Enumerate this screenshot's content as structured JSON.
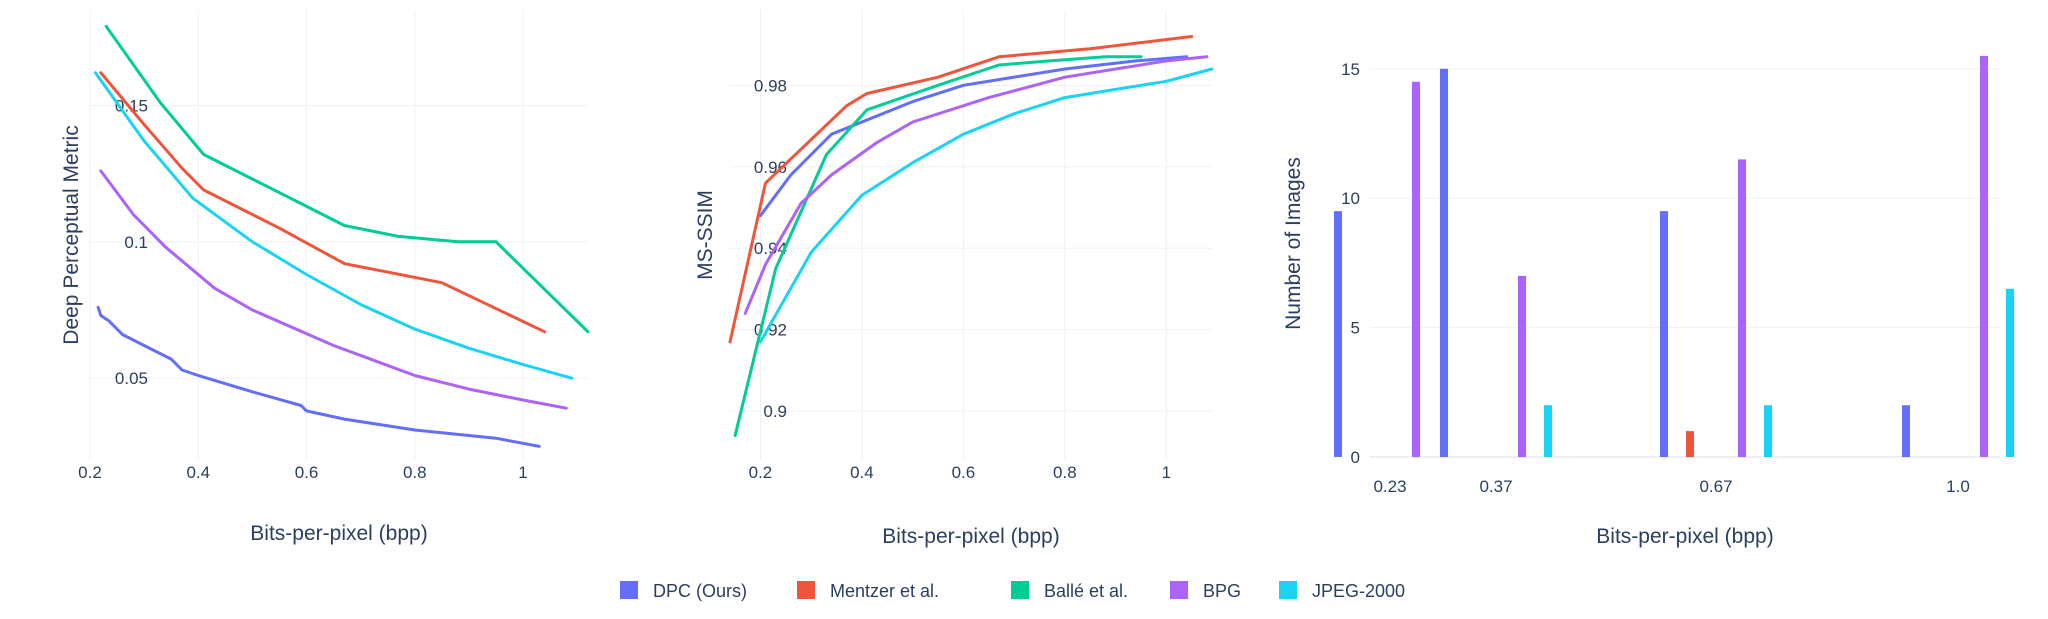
{
  "series_colors": {
    "DPC (Ours)": "#636efa",
    "Mentzer et al.": "#ef553b",
    "Ballé et al.": "#00cc96",
    "BPG": "#ab63fa",
    "JPEG-2000": "#19d3f3"
  },
  "legend": [
    "DPC (Ours)",
    "Mentzer et al.",
    "Ballé et al.",
    "BPG",
    "JPEG-2000"
  ],
  "chart_data": [
    {
      "type": "line",
      "title": "",
      "xlabel": "Bits-per-pixel (bpp)",
      "ylabel": "Deep Perceptual Metric",
      "xlim": [
        0.2,
        1.12
      ],
      "ylim": [
        0.02,
        0.185
      ],
      "xticks": [
        0.2,
        0.4,
        0.6,
        0.8,
        1
      ],
      "xtick_labels": [
        "0.2",
        "0.4",
        "0.6",
        "0.8",
        "1"
      ],
      "yticks": [
        0.05,
        0.1,
        0.15
      ],
      "ytick_labels": [
        "0.05",
        "0.1",
        "0.15"
      ],
      "series": [
        {
          "name": "DPC (Ours)",
          "x": [
            0.215,
            0.22,
            0.235,
            0.26,
            0.3,
            0.35,
            0.37,
            0.4,
            0.5,
            0.59,
            0.6,
            0.67,
            0.8,
            0.9,
            0.95,
            1.03
          ],
          "y": [
            0.076,
            0.073,
            0.071,
            0.066,
            0.062,
            0.057,
            0.053,
            0.051,
            0.045,
            0.04,
            0.038,
            0.035,
            0.031,
            0.029,
            0.028,
            0.025
          ]
        },
        {
          "name": "Mentzer et al.",
          "x": [
            0.22,
            0.3,
            0.37,
            0.41,
            0.55,
            0.67,
            0.85,
            1.04
          ],
          "y": [
            0.162,
            0.143,
            0.127,
            0.119,
            0.105,
            0.092,
            0.085,
            0.067
          ]
        },
        {
          "name": "Ballé et al.",
          "x": [
            0.23,
            0.33,
            0.41,
            0.55,
            0.67,
            0.77,
            0.88,
            0.95,
            1.12
          ],
          "y": [
            0.179,
            0.151,
            0.132,
            0.118,
            0.106,
            0.102,
            0.1,
            0.1,
            0.067
          ]
        },
        {
          "name": "BPG",
          "x": [
            0.22,
            0.28,
            0.34,
            0.43,
            0.5,
            0.65,
            0.8,
            0.9,
            1.0,
            1.08
          ],
          "y": [
            0.126,
            0.11,
            0.098,
            0.083,
            0.075,
            0.062,
            0.051,
            0.046,
            0.042,
            0.039
          ]
        },
        {
          "name": "JPEG-2000",
          "x": [
            0.21,
            0.3,
            0.39,
            0.5,
            0.6,
            0.7,
            0.8,
            0.9,
            1.0,
            1.09
          ],
          "y": [
            0.162,
            0.137,
            0.116,
            0.1,
            0.088,
            0.077,
            0.068,
            0.061,
            0.055,
            0.05
          ]
        }
      ]
    },
    {
      "type": "line",
      "title": "",
      "xlabel": "Bits-per-pixel (bpp)",
      "ylabel": "MS-SSIM",
      "xlim": [
        0.14,
        1.09
      ],
      "ylim": [
        0.888,
        0.9985
      ],
      "xticks": [
        0.2,
        0.4,
        0.6,
        0.8,
        1
      ],
      "xtick_labels": [
        "0.2",
        "0.4",
        "0.6",
        "0.8",
        "1"
      ],
      "yticks": [
        0.9,
        0.92,
        0.94,
        0.96,
        0.98
      ],
      "ytick_labels": [
        "0.9",
        "0.92",
        "0.94",
        "0.96",
        "0.98"
      ],
      "series": [
        {
          "name": "DPC (Ours)",
          "x": [
            0.2,
            0.26,
            0.34,
            0.5,
            0.6,
            0.8,
            0.94,
            1.04
          ],
          "y": [
            0.948,
            0.958,
            0.968,
            0.976,
            0.98,
            0.984,
            0.986,
            0.987
          ]
        },
        {
          "name": "Mentzer et al.",
          "x": [
            0.14,
            0.21,
            0.37,
            0.41,
            0.55,
            0.67,
            0.85,
            1.05
          ],
          "y": [
            0.917,
            0.956,
            0.975,
            0.978,
            0.982,
            0.987,
            0.989,
            0.992
          ]
        },
        {
          "name": "Ballé et al.",
          "x": [
            0.15,
            0.23,
            0.33,
            0.41,
            0.55,
            0.67,
            0.77,
            0.88,
            0.95
          ],
          "y": [
            0.894,
            0.935,
            0.963,
            0.974,
            0.98,
            0.985,
            0.986,
            0.987,
            0.987
          ]
        },
        {
          "name": "BPG",
          "x": [
            0.17,
            0.21,
            0.28,
            0.34,
            0.43,
            0.5,
            0.65,
            0.8,
            0.9,
            1.0,
            1.08
          ],
          "y": [
            0.924,
            0.936,
            0.951,
            0.958,
            0.966,
            0.971,
            0.977,
            0.982,
            0.984,
            0.986,
            0.987
          ]
        },
        {
          "name": "JPEG-2000",
          "x": [
            0.2,
            0.3,
            0.4,
            0.5,
            0.6,
            0.7,
            0.8,
            0.9,
            1.0,
            1.09
          ],
          "y": [
            0.917,
            0.939,
            0.953,
            0.961,
            0.968,
            0.973,
            0.977,
            0.979,
            0.981,
            0.984
          ]
        }
      ]
    },
    {
      "type": "bar",
      "title": "",
      "xlabel": "Bits-per-pixel (bpp)",
      "ylabel": "Number of Images",
      "categories": [
        "0.23",
        "0.37",
        "0.67",
        "1.0"
      ],
      "ylim": [
        0,
        16.5
      ],
      "yticks": [
        0,
        5,
        10,
        15
      ],
      "ytick_labels": [
        "0",
        "5",
        "10",
        "15"
      ],
      "series": [
        {
          "name": "DPC (Ours)",
          "values": [
            9.5,
            15,
            9.5,
            2
          ]
        },
        {
          "name": "Mentzer et al.",
          "values": [
            0,
            0,
            1,
            0
          ]
        },
        {
          "name": "Ballé et al.",
          "values": [
            0,
            0,
            0,
            0
          ]
        },
        {
          "name": "BPG",
          "values": [
            14.5,
            7,
            11.5,
            15.5
          ]
        },
        {
          "name": "JPEG-2000",
          "values": [
            0,
            2,
            2,
            6.5
          ]
        }
      ]
    }
  ]
}
